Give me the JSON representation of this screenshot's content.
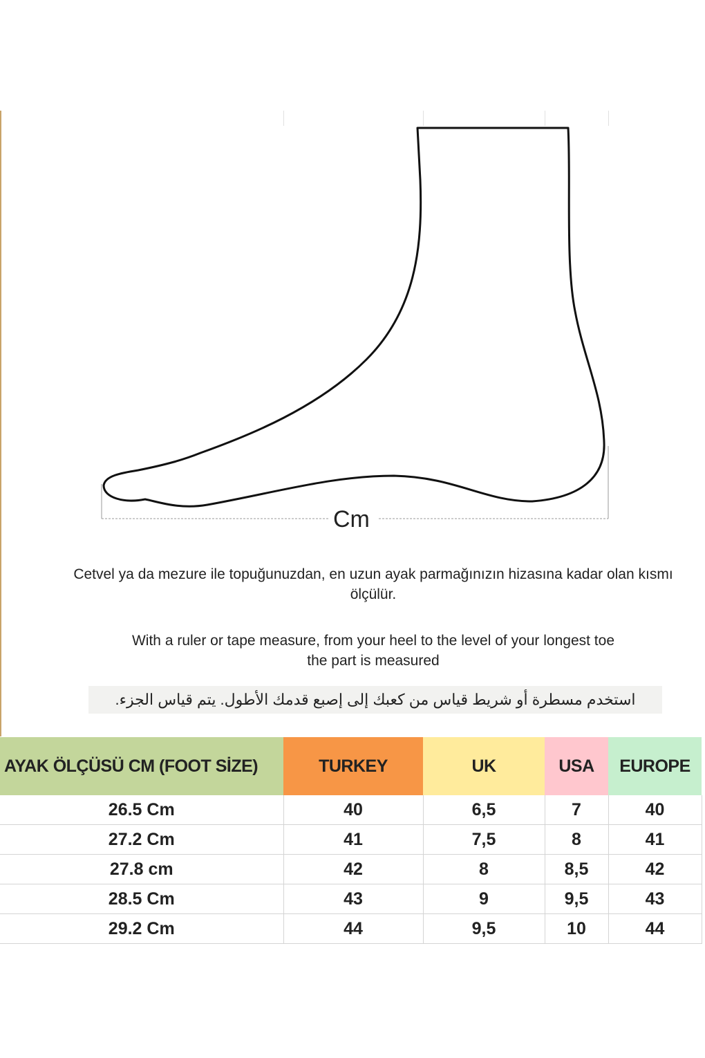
{
  "diagram": {
    "measure_label": "Cm"
  },
  "instructions": {
    "turkish": "Cetvel ya da mezure ile topuğunuzdan, en uzun ayak parmağınızın hizasına kadar olan kısmı ölçülür.",
    "english_line1": "With a ruler or tape measure, from your heel to the level of your longest toe",
    "english_line2": "the part is measured",
    "arabic": "استخدم مسطرة أو شريط قياس من كعبك إلى إصبع قدمك الأطول.  يتم قياس الجزء."
  },
  "table": {
    "headers": [
      "AYAK ÖLÇÜSÜ CM (FOOT SİZE)",
      "TURKEY",
      "UK",
      "USA",
      "EUROPE"
    ],
    "header_colors": [
      "#c3d69b",
      "#f79646",
      "#ffeb9c",
      "#ffc7ce",
      "#c6efce"
    ],
    "rows": [
      [
        "26.5 Cm",
        "40",
        "6,5",
        "7",
        "40"
      ],
      [
        "27.2 Cm",
        "41",
        "7,5",
        "8",
        "41"
      ],
      [
        "27.8 cm",
        "42",
        "8",
        "8,5",
        "42"
      ],
      [
        "28.5 Cm",
        "43",
        "9",
        "9,5",
        "43"
      ],
      [
        "29.2 Cm",
        "44",
        "9,5",
        "10",
        "44"
      ]
    ]
  }
}
